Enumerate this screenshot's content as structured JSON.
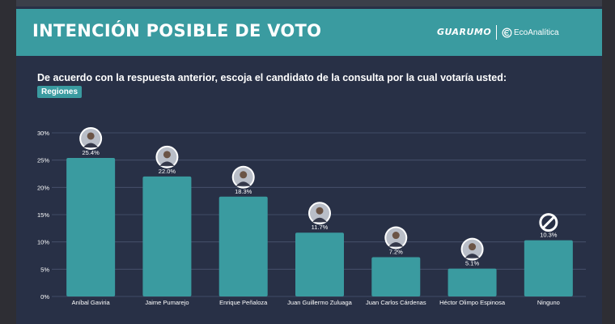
{
  "header": {
    "title": "INTENCIÓN POSIBLE DE VOTO",
    "brand": "GUARUMO",
    "partner": "EcoAnalítica"
  },
  "question": "De acuerdo con  la respuesta anterior, escoja el candidato de la consulta por la cual votaría usted:",
  "region_badge": "Regiones",
  "colors": {
    "header_bg": "#3a9ba0",
    "panel_bg": "#283046",
    "bar": "#3a9ba0",
    "grid": "#4a5570"
  },
  "chart_data": {
    "type": "bar",
    "categories": [
      "Aníbal Gaviria",
      "Jaime Pumarejo",
      "Enrique Peñaloza",
      "Juan Guillermo Zuluaga",
      "Juan Carlos Cárdenas",
      "Héctor Olimpo Espinosa",
      "Ninguno"
    ],
    "values": [
      25.4,
      22.0,
      18.3,
      11.7,
      7.2,
      5.1,
      10.3
    ],
    "value_labels": [
      "25.4%",
      "22.0%",
      "18.3%",
      "11.7%",
      "7.2%",
      "5.1%",
      "10.3%"
    ],
    "markers": [
      "avatar",
      "avatar",
      "avatar",
      "avatar",
      "avatar",
      "avatar",
      "no-symbol"
    ],
    "yticks": [
      "0%",
      "5%",
      "10%",
      "15%",
      "20%",
      "25%",
      "30%"
    ],
    "ylim": [
      0,
      30
    ],
    "grid": true
  }
}
